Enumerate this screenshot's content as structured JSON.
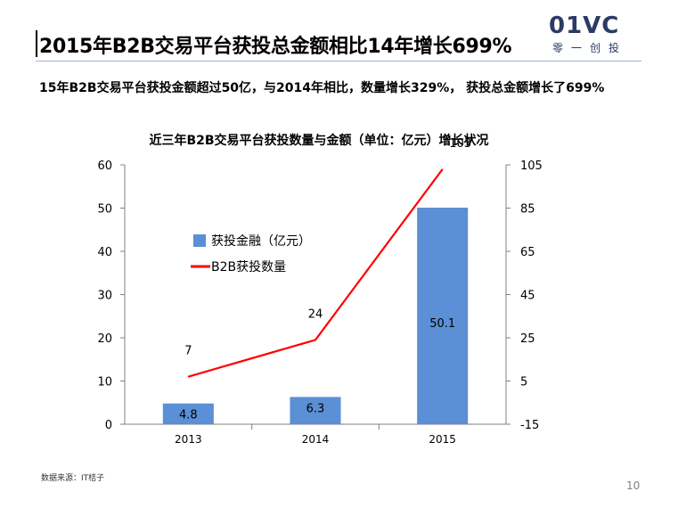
{
  "slide": {
    "title": "2015年B2B交易平台获投总金额相比14年增长699%",
    "subtitle": "15年B2B交易平台获投金额超过50亿，与2014年相比，数量增长329%， 获投总金额增长了699%",
    "source": "数据来源：IT桔子",
    "page_number": "10"
  },
  "logo": {
    "word": "01VC",
    "sub": "零一创投",
    "color": "#2b3b67"
  },
  "chart_data": {
    "type": "bar",
    "title": "近三年B2B交易平台获投数量与金额（单位：亿元）增长状况",
    "categories": [
      "2013",
      "2014",
      "2015"
    ],
    "series": [
      {
        "name": "获投金融（亿元）",
        "type": "bar",
        "axis": "left",
        "values": [
          4.8,
          6.3,
          50.1
        ],
        "labels": [
          "4.8",
          "6.3",
          "50.1"
        ],
        "color": "#5b8fd6"
      },
      {
        "name": "B2B获投数量",
        "type": "line",
        "axis": "right",
        "values": [
          7,
          24,
          103
        ],
        "labels": [
          "7",
          "24",
          "103"
        ],
        "color": "#ff0000"
      }
    ],
    "y_left": {
      "min": 0,
      "max": 60,
      "ticks": [
        "60",
        "50",
        "40",
        "30",
        "20",
        "10",
        "0"
      ]
    },
    "y_right": {
      "min": -15,
      "max": 105,
      "ticks": [
        "105",
        "85",
        "65",
        "45",
        "25",
        "5",
        "-15"
      ]
    },
    "grid": false,
    "legend_position": "inside-left"
  }
}
